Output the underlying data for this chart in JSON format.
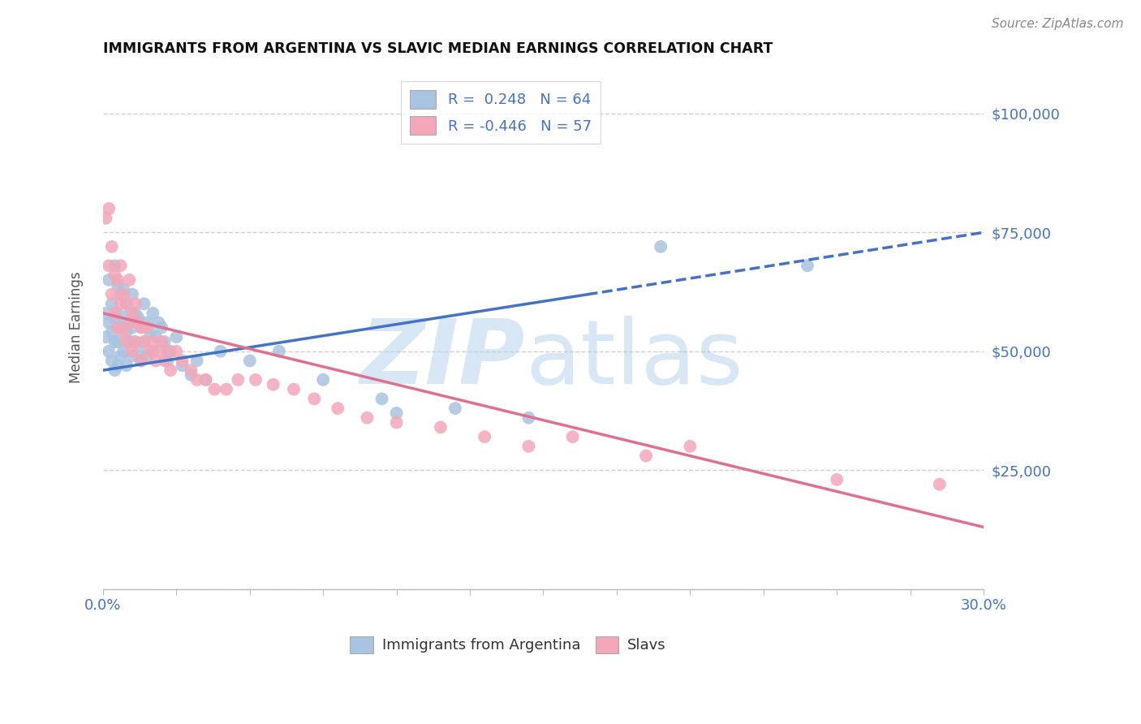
{
  "title": "IMMIGRANTS FROM ARGENTINA VS SLAVIC MEDIAN EARNINGS CORRELATION CHART",
  "source": "Source: ZipAtlas.com",
  "ylabel": "Median Earnings",
  "xlim": [
    0.0,
    0.3
  ],
  "ylim": [
    0,
    110000
  ],
  "xtick_vals": [
    0.0,
    0.025,
    0.05,
    0.075,
    0.1,
    0.125,
    0.15,
    0.175,
    0.2,
    0.225,
    0.25,
    0.275,
    0.3
  ],
  "xtick_label_vals": [
    0.0,
    0.3
  ],
  "xtick_label_texts": [
    "0.0%",
    "30.0%"
  ],
  "ytick_vals": [
    0,
    25000,
    50000,
    75000,
    100000
  ],
  "ytick_labels_right": [
    "",
    "$25,000",
    "$50,000",
    "$75,000",
    "$100,000"
  ],
  "r_argentina": 0.248,
  "n_argentina": 64,
  "r_slavic": -0.446,
  "n_slavic": 57,
  "argentina_color": "#a8c4e0",
  "slavic_color": "#f4a7b9",
  "argentina_line_color": "#4472c4",
  "slavic_line_color": "#e07090",
  "legend_text_color": "#4472c4",
  "right_axis_color": "#4472c4",
  "background_color": "#ffffff",
  "grid_color": "#d0d0d0",
  "trendline_argentina_x0": 0.0,
  "trendline_argentina_y0": 46000,
  "trendline_argentina_x1": 0.3,
  "trendline_argentina_y1": 75000,
  "trendline_argentina_solid_end": 0.165,
  "trendline_slavic_x0": 0.0,
  "trendline_slavic_y0": 58000,
  "trendline_slavic_x1": 0.3,
  "trendline_slavic_y1": 13000,
  "argentina_scatter_x": [
    0.001,
    0.001,
    0.002,
    0.002,
    0.002,
    0.003,
    0.003,
    0.003,
    0.004,
    0.004,
    0.004,
    0.004,
    0.005,
    0.005,
    0.005,
    0.005,
    0.006,
    0.006,
    0.006,
    0.007,
    0.007,
    0.007,
    0.008,
    0.008,
    0.008,
    0.009,
    0.009,
    0.01,
    0.01,
    0.01,
    0.011,
    0.011,
    0.012,
    0.012,
    0.013,
    0.013,
    0.014,
    0.014,
    0.015,
    0.015,
    0.016,
    0.017,
    0.017,
    0.018,
    0.019,
    0.02,
    0.021,
    0.022,
    0.023,
    0.025,
    0.027,
    0.03,
    0.032,
    0.035,
    0.04,
    0.05,
    0.06,
    0.075,
    0.095,
    0.1,
    0.12,
    0.145,
    0.19,
    0.24
  ],
  "argentina_scatter_y": [
    58000,
    53000,
    65000,
    56000,
    50000,
    60000,
    54000,
    48000,
    68000,
    57000,
    52000,
    46000,
    64000,
    58000,
    52000,
    47000,
    62000,
    55000,
    49000,
    63000,
    56000,
    50000,
    60000,
    54000,
    47000,
    58000,
    52000,
    62000,
    55000,
    49000,
    58000,
    52000,
    57000,
    50000,
    55000,
    48000,
    60000,
    52000,
    56000,
    49000,
    54000,
    58000,
    50000,
    53000,
    56000,
    55000,
    52000,
    48000,
    50000,
    53000,
    47000,
    45000,
    48000,
    44000,
    50000,
    48000,
    50000,
    44000,
    40000,
    37000,
    38000,
    36000,
    72000,
    68000
  ],
  "slavic_scatter_x": [
    0.001,
    0.002,
    0.002,
    0.003,
    0.003,
    0.004,
    0.004,
    0.005,
    0.005,
    0.006,
    0.006,
    0.007,
    0.007,
    0.008,
    0.008,
    0.009,
    0.009,
    0.01,
    0.01,
    0.011,
    0.011,
    0.012,
    0.013,
    0.013,
    0.014,
    0.015,
    0.016,
    0.017,
    0.018,
    0.019,
    0.02,
    0.021,
    0.022,
    0.023,
    0.025,
    0.027,
    0.03,
    0.032,
    0.035,
    0.038,
    0.042,
    0.046,
    0.052,
    0.058,
    0.065,
    0.072,
    0.08,
    0.09,
    0.1,
    0.115,
    0.13,
    0.145,
    0.16,
    0.185,
    0.2,
    0.25,
    0.285
  ],
  "slavic_scatter_y": [
    78000,
    80000,
    68000,
    72000,
    62000,
    66000,
    58000,
    65000,
    55000,
    68000,
    60000,
    62000,
    54000,
    60000,
    52000,
    65000,
    56000,
    58000,
    50000,
    60000,
    52000,
    56000,
    55000,
    48000,
    52000,
    55000,
    50000,
    52000,
    48000,
    50000,
    52000,
    48000,
    50000,
    46000,
    50000,
    48000,
    46000,
    44000,
    44000,
    42000,
    42000,
    44000,
    44000,
    43000,
    42000,
    40000,
    38000,
    36000,
    35000,
    34000,
    32000,
    30000,
    32000,
    28000,
    30000,
    23000,
    22000
  ]
}
